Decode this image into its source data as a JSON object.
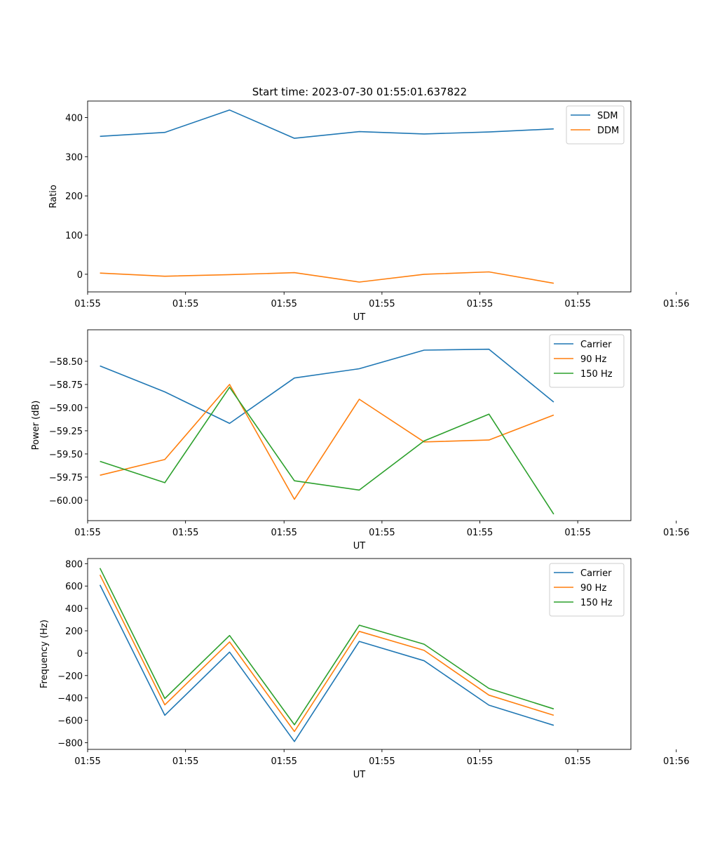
{
  "figure": {
    "title": "Start time: 2023-07-30 01:55:01.637822"
  },
  "chart_data": [
    {
      "type": "line",
      "title": "Start time: 2023-07-30 01:55:01.637822",
      "xlabel": "UT",
      "ylabel": "Ratio",
      "x": [
        1,
        2,
        3,
        4,
        5,
        6,
        7,
        8
      ],
      "xlim": [
        0.81,
        9.19
      ],
      "xticks": [
        0.81,
        2.32,
        3.84,
        5.35,
        6.86,
        8.37,
        9.89
      ],
      "xtick_labels": [
        "01:55",
        "01:55",
        "01:55",
        "01:55",
        "01:55",
        "01:55",
        "01:56"
      ],
      "ylim": [
        -45,
        442
      ],
      "yticks": [
        0,
        100,
        200,
        300,
        400
      ],
      "ytick_labels": [
        "0",
        "100",
        "200",
        "300",
        "400"
      ],
      "legend_position": "top-right",
      "series": [
        {
          "name": "SDM",
          "color": "#1f77b4",
          "values": [
            352,
            362,
            419,
            347,
            364,
            358,
            363,
            371
          ]
        },
        {
          "name": "DDM",
          "color": "#ff7f0e",
          "values": [
            3,
            -5,
            -1,
            4,
            -20,
            0,
            6,
            -23
          ]
        }
      ]
    },
    {
      "type": "line",
      "xlabel": "UT",
      "ylabel": "Power (dB)",
      "x": [
        1,
        2,
        3,
        4,
        5,
        6,
        7,
        8
      ],
      "xlim": [
        0.81,
        9.19
      ],
      "xticks": [
        0.81,
        2.32,
        3.84,
        5.35,
        6.86,
        8.37,
        9.89
      ],
      "xtick_labels": [
        "01:55",
        "01:55",
        "01:55",
        "01:55",
        "01:55",
        "01:55",
        "01:56"
      ],
      "ylim": [
        -60.22,
        -58.16
      ],
      "yticks": [
        -60.0,
        -59.75,
        -59.5,
        -59.25,
        -59.0,
        -58.75,
        -58.5
      ],
      "ytick_labels": [
        "−60.00",
        "−59.75",
        "−59.50",
        "−59.25",
        "−59.00",
        "−58.75",
        "−58.50"
      ],
      "legend_position": "top-right",
      "series": [
        {
          "name": "Carrier",
          "color": "#1f77b4",
          "values": [
            -58.55,
            -58.83,
            -59.17,
            -58.68,
            -58.58,
            -58.38,
            -58.37,
            -58.94
          ]
        },
        {
          "name": "90 Hz",
          "color": "#ff7f0e",
          "values": [
            -59.73,
            -59.56,
            -58.75,
            -59.99,
            -58.91,
            -59.37,
            -59.35,
            -59.08
          ]
        },
        {
          "name": "150 Hz",
          "color": "#2ca02c",
          "values": [
            -59.58,
            -59.81,
            -58.78,
            -59.79,
            -59.89,
            -59.36,
            -59.07,
            -60.15
          ]
        }
      ]
    },
    {
      "type": "line",
      "xlabel": "UT",
      "ylabel": "Frequency (Hz)",
      "x": [
        1,
        2,
        3,
        4,
        5,
        6,
        7,
        8
      ],
      "xlim": [
        0.81,
        9.19
      ],
      "xticks": [
        0.81,
        2.32,
        3.84,
        5.35,
        6.86,
        8.37,
        9.89
      ],
      "xtick_labels": [
        "01:55",
        "01:55",
        "01:55",
        "01:55",
        "01:55",
        "01:55",
        "01:56"
      ],
      "ylim": [
        -860,
        846
      ],
      "yticks": [
        -800,
        -600,
        -400,
        -200,
        0,
        200,
        400,
        600,
        800
      ],
      "ytick_labels": [
        "−800",
        "−600",
        "−400",
        "−200",
        "0",
        "200",
        "400",
        "600",
        "800"
      ],
      "legend_position": "top-right",
      "series": [
        {
          "name": "Carrier",
          "color": "#1f77b4",
          "values": [
            610,
            -555,
            10,
            -790,
            105,
            -68,
            -465,
            -645
          ]
        },
        {
          "name": "90 Hz",
          "color": "#ff7f0e",
          "values": [
            700,
            -462,
            100,
            -700,
            195,
            25,
            -375,
            -555
          ]
        },
        {
          "name": "150 Hz",
          "color": "#2ca02c",
          "values": [
            760,
            -405,
            158,
            -640,
            250,
            80,
            -315,
            -498
          ]
        }
      ]
    }
  ]
}
